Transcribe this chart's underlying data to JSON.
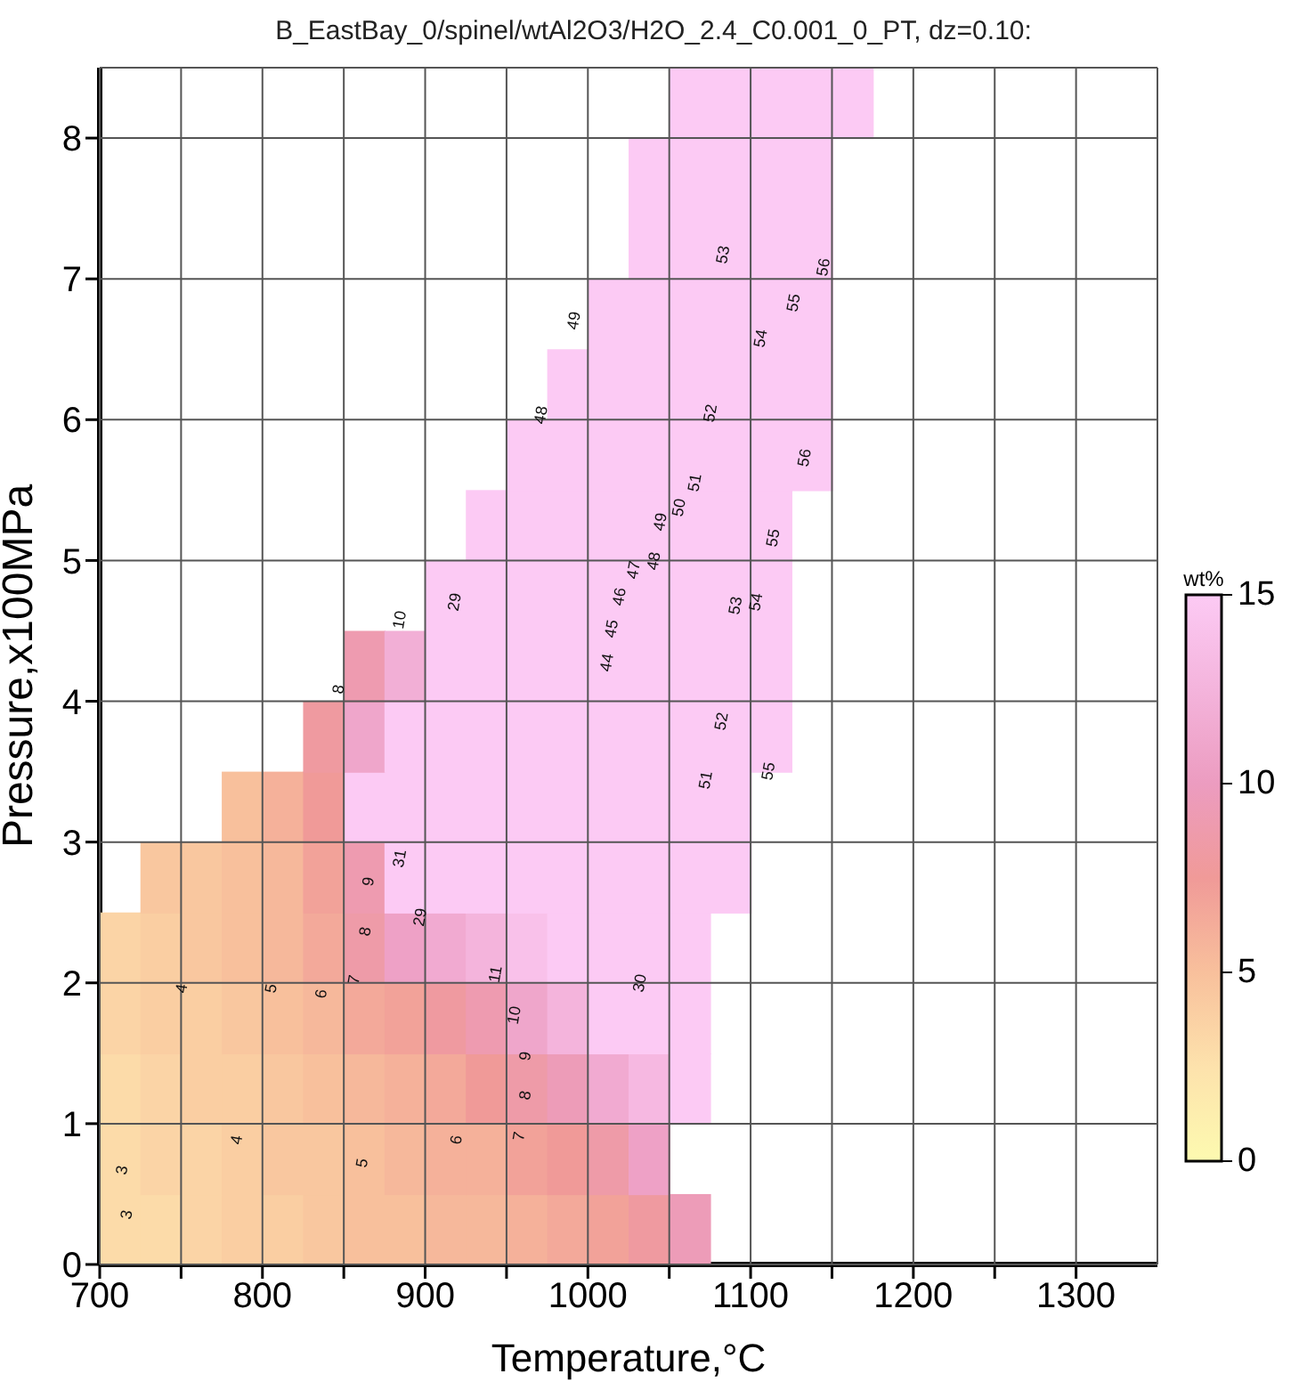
{
  "chart_data": {
    "type": "scatter",
    "title": "B_EastBay_0/spinel/wtAl2O3/H2O_2.4_C0.001_0_PT, dz=0.10:",
    "xlabel": "Temperature,°C",
    "ylabel": "Pressure,x100MPa",
    "clabel": "wt%",
    "xlim": [
      700,
      1350
    ],
    "xticks": [
      700,
      {
        "value": 750,
        "label": null
      },
      800,
      {
        "value": 850,
        "label": null
      },
      900,
      {
        "value": 950,
        "label": null
      },
      1000,
      {
        "value": 1050,
        "label": null
      },
      1100,
      {
        "value": 1150,
        "label": null
      },
      1200,
      {
        "value": 1250,
        "label": null
      },
      1300
    ],
    "ylim": [
      0,
      8.5
    ],
    "yticks": [
      0,
      1,
      2,
      3,
      4,
      5,
      6,
      7,
      8
    ],
    "clim": [
      0,
      15
    ],
    "cticks": [
      0,
      5,
      10,
      15
    ],
    "grid": true,
    "marker": "square",
    "x": [
      712.5,
      737.5,
      762.5,
      787.5,
      812.5,
      837.5,
      862.5,
      887.5,
      912.5,
      937.5,
      962.5,
      987.5,
      1012.5,
      1037.5,
      1062.5,
      712.5,
      737.5,
      762.5,
      787.5,
      812.5,
      837.5,
      862.5,
      887.5,
      912.5,
      937.5,
      962.5,
      987.5,
      1012.5,
      1037.5,
      712.5,
      737.5,
      762.5,
      787.5,
      812.5,
      837.5,
      862.5,
      887.5,
      912.5,
      937.5,
      962.5,
      987.5,
      1012.5,
      1037.5,
      1062.5,
      712.5,
      737.5,
      762.5,
      787.5,
      812.5,
      837.5,
      862.5,
      887.5,
      912.5,
      937.5,
      962.5,
      987.5,
      1012.5,
      1037.5,
      1062.5,
      712.5,
      737.5,
      762.5,
      787.5,
      812.5,
      837.5,
      862.5,
      887.5,
      912.5,
      937.5,
      962.5,
      987.5,
      1012.5,
      1037.5,
      1062.5,
      737.5,
      762.5,
      787.5,
      812.5,
      837.5,
      862.5,
      887.5,
      912.5,
      937.5,
      962.5,
      987.5,
      1012.5,
      1037.5,
      1062.5,
      1087.5,
      787.5,
      812.5,
      837.5,
      862.5,
      887.5,
      912.5,
      937.5,
      962.5,
      987.5,
      1012.5,
      1037.5,
      1062.5,
      1087.5,
      837.5,
      862.5,
      887.5,
      912.5,
      937.5,
      962.5,
      987.5,
      1012.5,
      1037.5,
      1062.5,
      1087.5,
      1112.5,
      862.5,
      887.5,
      912.5,
      937.5,
      962.5,
      987.5,
      1012.5,
      1037.5,
      1062.5,
      1087.5,
      1112.5,
      912.5,
      937.5,
      962.5,
      987.5,
      1012.5,
      1037.5,
      1062.5,
      1087.5,
      1112.5,
      937.5,
      962.5,
      987.5,
      1012.5,
      1037.5,
      1062.5,
      1087.5,
      1112.5,
      962.5,
      987.5,
      1012.5,
      1037.5,
      1062.5,
      1087.5,
      1112.5,
      1137.5,
      987.5,
      1012.5,
      1037.5,
      1062.5,
      1087.5,
      1112.5,
      1137.5,
      1012.5,
      1037.5,
      1062.5,
      1087.5,
      1112.5,
      1137.5,
      1037.5,
      1062.5,
      1087.5,
      1112.5,
      1137.5,
      1037.5,
      1062.5,
      1087.5,
      1112.5,
      1137.5,
      1062.5,
      1087.5,
      1112.5,
      1137.5,
      1162.5
    ],
    "values": [
      0.25,
      0.25,
      0.25,
      0.25,
      0.25,
      0.25,
      0.25,
      0.25,
      0.25,
      0.25,
      0.25,
      0.25,
      0.25,
      0.25,
      0.25,
      0.75,
      0.75,
      0.75,
      0.75,
      0.75,
      0.75,
      0.75,
      0.75,
      0.75,
      0.75,
      0.75,
      0.75,
      0.75,
      0.75,
      1.25,
      1.25,
      1.25,
      1.25,
      1.25,
      1.25,
      1.25,
      1.25,
      1.25,
      1.25,
      1.25,
      1.25,
      1.25,
      1.25,
      1.25,
      1.75,
      1.75,
      1.75,
      1.75,
      1.75,
      1.75,
      1.75,
      1.75,
      1.75,
      1.75,
      1.75,
      1.75,
      1.75,
      1.75,
      1.75,
      2.25,
      2.25,
      2.25,
      2.25,
      2.25,
      2.25,
      2.25,
      2.25,
      2.25,
      2.25,
      2.25,
      2.25,
      2.25,
      2.25,
      2.25,
      2.75,
      2.75,
      2.75,
      2.75,
      2.75,
      2.75,
      2.75,
      2.75,
      2.75,
      2.75,
      2.75,
      2.75,
      2.75,
      2.75,
      2.75,
      3.25,
      3.25,
      3.25,
      3.25,
      3.25,
      3.25,
      3.25,
      3.25,
      3.25,
      3.25,
      3.25,
      3.25,
      3.25,
      3.75,
      3.75,
      3.75,
      3.75,
      3.75,
      3.75,
      3.75,
      3.75,
      3.75,
      3.75,
      3.75,
      3.75,
      4.25,
      4.25,
      4.25,
      4.25,
      4.25,
      4.25,
      4.25,
      4.25,
      4.25,
      4.25,
      4.25,
      4.75,
      4.75,
      4.75,
      4.75,
      4.75,
      4.75,
      4.75,
      4.75,
      4.75,
      5.25,
      5.25,
      5.25,
      5.25,
      5.25,
      5.25,
      5.25,
      5.25,
      5.75,
      5.75,
      5.75,
      5.75,
      5.75,
      5.75,
      5.75,
      5.75,
      6.25,
      6.25,
      6.25,
      6.25,
      6.25,
      6.25,
      6.25,
      6.75,
      6.75,
      6.75,
      6.75,
      6.75,
      6.75,
      7.25,
      7.25,
      7.25,
      7.25,
      7.25,
      7.75,
      7.75,
      7.75,
      7.75,
      7.75,
      8.25,
      8.25,
      8.25,
      8.25,
      8.25
    ],
    "cvalues": [
      3,
      3,
      3.5,
      4,
      4,
      4.5,
      5,
      5,
      5.5,
      5.5,
      6,
      6.5,
      7,
      8,
      9.5,
      3,
      3.5,
      3.5,
      4,
      4.5,
      4.5,
      5,
      5.5,
      6,
      6,
      7,
      7.5,
      8.5,
      10.5,
      3,
      3.5,
      4,
      4,
      4.5,
      5,
      5.5,
      6,
      6.5,
      7.5,
      8.5,
      9.5,
      11.5,
      13,
      15,
      3.5,
      4,
      4,
      4.5,
      5,
      5.5,
      6.5,
      7,
      8,
      9,
      11,
      12.5,
      15,
      15,
      15,
      3.5,
      4,
      4.5,
      5,
      5.5,
      6.5,
      8.5,
      10.5,
      11.5,
      12.5,
      14,
      15,
      15,
      15,
      15,
      4.5,
      4.5,
      5,
      5.5,
      7,
      9,
      15,
      15,
      15,
      15,
      15,
      15,
      15,
      15,
      15,
      5,
      6,
      7.5,
      15,
      15,
      15,
      15,
      15,
      15,
      15,
      15,
      15,
      15,
      8,
      11,
      15,
      15,
      15,
      15,
      15,
      15,
      15,
      15,
      15,
      15,
      9,
      12,
      15,
      15,
      15,
      15,
      15,
      15,
      15,
      15,
      15,
      15,
      15,
      15,
      15,
      15,
      15,
      15,
      15,
      15,
      15,
      15,
      15,
      15,
      15,
      15,
      15,
      15,
      15,
      15,
      15,
      15,
      15,
      15,
      15,
      15,
      15,
      15,
      15,
      15,
      15,
      15,
      15,
      15,
      15,
      15,
      15,
      15,
      15,
      15,
      15,
      15,
      15,
      15,
      15,
      15,
      15,
      15,
      15,
      15,
      15,
      15,
      15,
      15
    ],
    "annotations": [
      "3",
      "3",
      "4",
      "4",
      "5",
      "5",
      "6",
      "6",
      "7",
      "7",
      "8",
      "8",
      "9",
      "9",
      "10",
      "11",
      "31",
      "29",
      "8",
      "10",
      "29",
      "30",
      "44",
      "45",
      "46",
      "47",
      "48",
      "49",
      "50",
      "51",
      "52",
      "53",
      "54",
      "55",
      "55",
      "51",
      "52",
      "53",
      "54",
      "55",
      "56",
      "56",
      "48",
      "49"
    ]
  }
}
